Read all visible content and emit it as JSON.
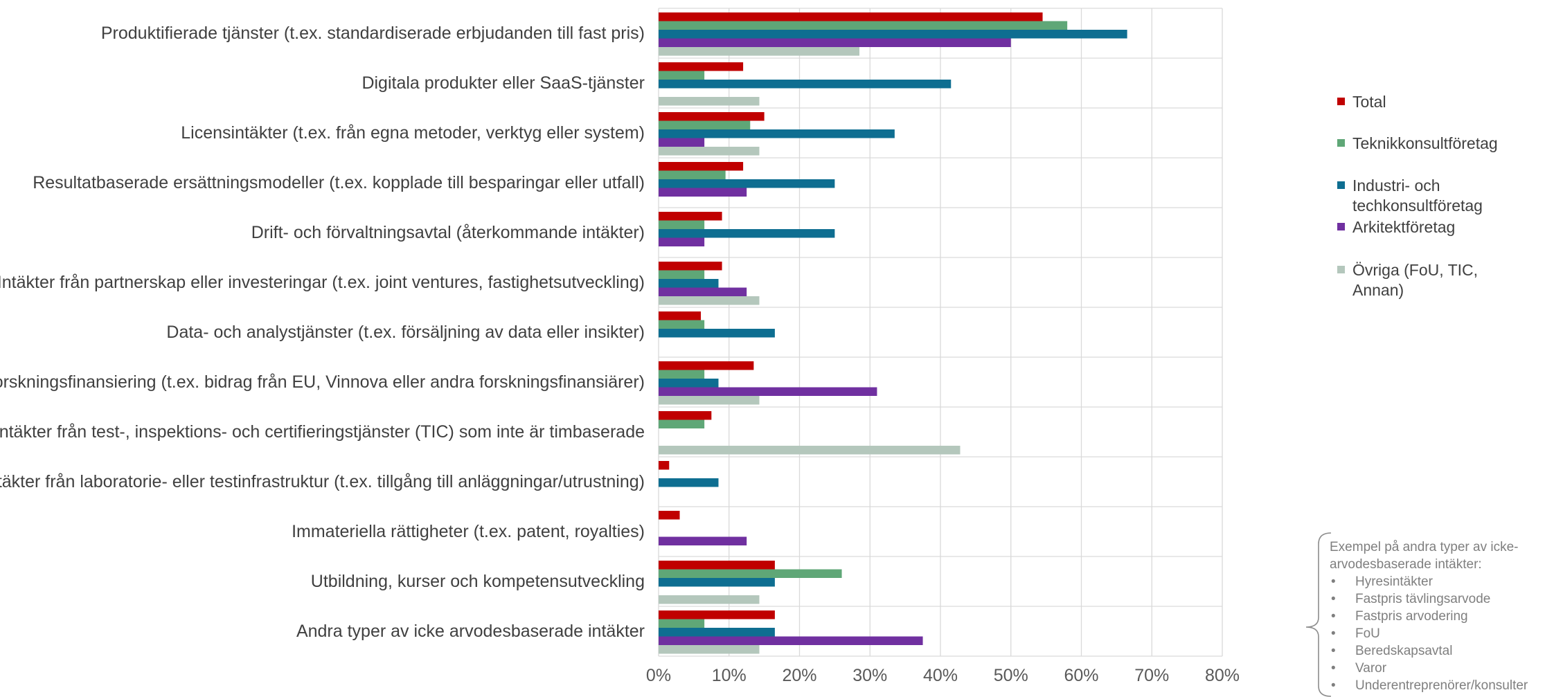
{
  "chart_data": {
    "type": "bar",
    "orientation": "horizontal",
    "categories": [
      "Produktifierade tjänster (t.ex. standardiserade erbjudanden till fast pris)",
      "Digitala produkter eller SaaS-tjänster",
      "Licensintäkter (t.ex. från egna metoder, verktyg eller system)",
      "Resultatbaserade ersättningsmodeller (t.ex. kopplade till besparingar eller utfall)",
      "Drift- och förvaltningsavtal (återkommande intäkter)",
      "Intäkter från partnerskap eller investeringar (t.ex. joint ventures, fastighetsutveckling)",
      "Data- och analystjänster (t.ex. försäljning av data eller insikter)",
      "Forskningsfinansiering (t.ex. bidrag från EU, Vinnova eller andra forskningsfinansiärer)",
      "Intäkter från test-, inspektions- och certifieringstjänster (TIC) som inte är timbaserade",
      "Intäkter från laboratorie- eller testinfrastruktur (t.ex. tillgång till anläggningar/utrustning)",
      "Immateriella rättigheter (t.ex. patent, royalties)",
      "Utbildning, kurser och kompetensutveckling",
      "Andra typer av icke arvodesbaserade intäkter"
    ],
    "series": [
      {
        "name": "Total",
        "color": "#c00000",
        "values": [
          54.5,
          12,
          15,
          12,
          9,
          9,
          6,
          13.5,
          7.5,
          1.5,
          3,
          16.5,
          16.5
        ]
      },
      {
        "name": "Teknikkonsultföretag",
        "color": "#5fa777",
        "values": [
          58,
          6.5,
          13,
          9.5,
          6.5,
          6.5,
          6.5,
          6.5,
          6.5,
          0,
          0,
          26,
          6.5
        ]
      },
      {
        "name": "Industri- och techkonsultföretag",
        "color": "#0e6e91",
        "values": [
          66.5,
          41.5,
          33.5,
          25,
          25,
          8.5,
          16.5,
          8.5,
          0,
          8.5,
          0,
          16.5,
          16.5
        ]
      },
      {
        "name": "Arkitektföretag",
        "color": "#7030a0",
        "values": [
          50,
          0,
          6.5,
          12.5,
          6.5,
          12.5,
          0,
          31,
          0,
          0,
          12.5,
          0,
          37.5
        ]
      },
      {
        "name": "Övriga (FoU, TIC, Annan)",
        "color": "#b4c7bc",
        "values": [
          28.5,
          14.3,
          14.3,
          0,
          0,
          14.3,
          0,
          14.3,
          42.8,
          0,
          0,
          14.3,
          14.3
        ]
      }
    ],
    "xlim": [
      0,
      80
    ],
    "xticks": [
      "0%",
      "10%",
      "20%",
      "30%",
      "40%",
      "50%",
      "60%",
      "70%",
      "80%"
    ],
    "grid": true,
    "legend": "right",
    "legend_entries": [
      [
        "Total"
      ],
      [
        "Teknikkonsultföretag"
      ],
      [
        "Industri- och",
        "techkonsultföretag"
      ],
      [
        "Arkitektföretag"
      ],
      [
        "Övriga (FoU, TIC,",
        "Annan)"
      ]
    ]
  },
  "note": {
    "title": "Exempel på andra typer av icke-arvodesbaserade intäkter:",
    "items": [
      "Hyresintäkter",
      "Fastpris tävlingsarvode",
      "Fastpris arvodering",
      "FoU",
      "Beredskapsavtal",
      "Varor",
      "Underentreprenörer/konsulter"
    ]
  }
}
